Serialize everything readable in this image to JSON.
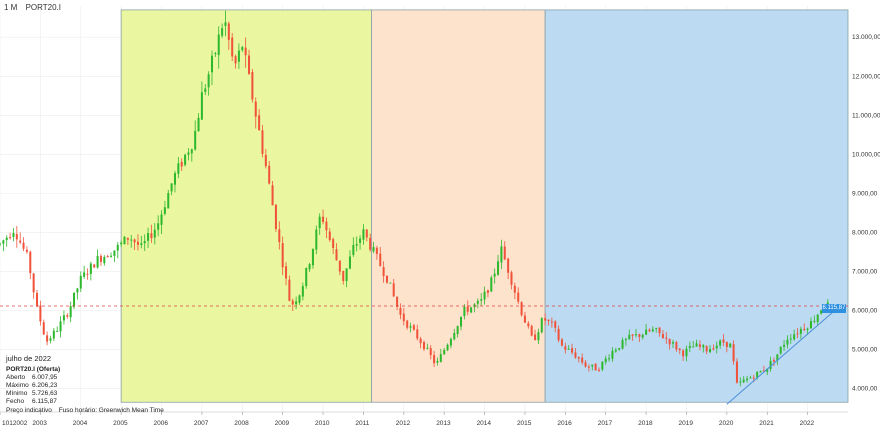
{
  "header": {
    "timeframe": "1 M",
    "symbol": "PORT20.I"
  },
  "info": {
    "period": "julho de 2022",
    "instrument": "PORT20.I (Oferta)",
    "rows": [
      {
        "label": "Aberto",
        "value": "6.007,95"
      },
      {
        "label": "Máximo",
        "value": "6.206,23"
      },
      {
        "label": "Mínimo",
        "value": "5.726,63"
      },
      {
        "label": "Fecho",
        "value": "6.115,87"
      }
    ],
    "footer": {
      "indicative": "Preço indicativo",
      "timezone": "Fuso horário: Greenwich Mean Time"
    }
  },
  "last_price_label": "6.115,87",
  "colors": {
    "up": "#2db82d",
    "down": "#f0523a",
    "zone_green": "#eaf6a0",
    "zone_peach": "#fde2cc",
    "zone_blue": "#bcdaf2",
    "trendline": "#4a90d9",
    "price_line": "#e04040",
    "price_tag": "#2f8fe0"
  },
  "chart_data": {
    "type": "candlestick",
    "x_tick_labels": [
      "1012002",
      "2003",
      "2004",
      "2005",
      "2006",
      "2007",
      "2008",
      "2009",
      "2010",
      "2011",
      "2012",
      "2013",
      "2014",
      "2015",
      "2016",
      "2017",
      "2018",
      "2019",
      "2020",
      "2021",
      "2022"
    ],
    "y_tick_labels": [
      "4.000,00",
      "5.000,00",
      "6.000,00",
      "7.000,00",
      "8.000,00",
      "9.000,00",
      "10.000,00",
      "11.000,00",
      "12.000,00",
      "13.000,00"
    ],
    "y_ticks": [
      4000,
      5000,
      6000,
      7000,
      8000,
      9000,
      10000,
      11000,
      12000,
      13000
    ],
    "ylim": [
      3400,
      13800
    ],
    "xlim": [
      2002.0,
      2023.0
    ],
    "last_price": 6115.87,
    "anchors": [
      [
        2002.0,
        7700
      ],
      [
        2002.35,
        8100
      ],
      [
        2002.7,
        7300
      ],
      [
        2002.9,
        6100
      ],
      [
        2003.15,
        5200
      ],
      [
        2003.4,
        5500
      ],
      [
        2003.7,
        6000
      ],
      [
        2004.0,
        6800
      ],
      [
        2004.4,
        7300
      ],
      [
        2004.9,
        7600
      ],
      [
        2005.2,
        7900
      ],
      [
        2005.5,
        7600
      ],
      [
        2005.9,
        8200
      ],
      [
        2006.3,
        9400
      ],
      [
        2006.8,
        10400
      ],
      [
        2007.0,
        11500
      ],
      [
        2007.3,
        12500
      ],
      [
        2007.55,
        13500
      ],
      [
        2007.8,
        12200
      ],
      [
        2008.0,
        12800
      ],
      [
        2008.3,
        11200
      ],
      [
        2008.6,
        9600
      ],
      [
        2008.9,
        7800
      ],
      [
        2009.2,
        6100
      ],
      [
        2009.45,
        6500
      ],
      [
        2009.7,
        7400
      ],
      [
        2009.95,
        8500
      ],
      [
        2010.2,
        7700
      ],
      [
        2010.5,
        6800
      ],
      [
        2010.75,
        7600
      ],
      [
        2011.0,
        8000
      ],
      [
        2011.25,
        7500
      ],
      [
        2011.6,
        6800
      ],
      [
        2011.9,
        5900
      ],
      [
        2012.2,
        5500
      ],
      [
        2012.5,
        5100
      ],
      [
        2012.8,
        4600
      ],
      [
        2013.1,
        5200
      ],
      [
        2013.5,
        6000
      ],
      [
        2013.9,
        6200
      ],
      [
        2014.2,
        6800
      ],
      [
        2014.4,
        7600
      ],
      [
        2014.6,
        7000
      ],
      [
        2014.9,
        6000
      ],
      [
        2015.2,
        5200
      ],
      [
        2015.45,
        5800
      ],
      [
        2015.7,
        5600
      ],
      [
        2015.9,
        5100
      ],
      [
        2016.2,
        4900
      ],
      [
        2016.5,
        4600
      ],
      [
        2016.8,
        4500
      ],
      [
        2017.2,
        5000
      ],
      [
        2017.6,
        5300
      ],
      [
        2017.9,
        5400
      ],
      [
        2018.2,
        5500
      ],
      [
        2018.6,
        5200
      ],
      [
        2018.9,
        4900
      ],
      [
        2019.2,
        5100
      ],
      [
        2019.5,
        5000
      ],
      [
        2019.9,
        5200
      ],
      [
        2020.1,
        5100
      ],
      [
        2020.25,
        4100
      ],
      [
        2020.6,
        4300
      ],
      [
        2020.95,
        4500
      ],
      [
        2021.2,
        4800
      ],
      [
        2021.5,
        5300
      ],
      [
        2021.8,
        5500
      ],
      [
        2022.1,
        5700
      ],
      [
        2022.4,
        6150
      ],
      [
        2022.55,
        6115
      ]
    ],
    "annotations": [
      {
        "type": "rect",
        "x": [
          2005.0,
          2011.2
        ],
        "y": [
          3650,
          13700
        ],
        "color": "zone_green"
      },
      {
        "type": "rect",
        "x": [
          2011.2,
          2015.5
        ],
        "y": [
          3650,
          13700
        ],
        "color": "zone_peach"
      },
      {
        "type": "rect",
        "x": [
          2015.5,
          2023.0
        ],
        "y": [
          3650,
          13700
        ],
        "color": "zone_blue"
      },
      {
        "type": "trendline",
        "from": [
          2020.0,
          3600
        ],
        "to": [
          2022.85,
          6160
        ]
      },
      {
        "type": "hline",
        "y": 6115.87,
        "style": "dashed"
      }
    ]
  }
}
